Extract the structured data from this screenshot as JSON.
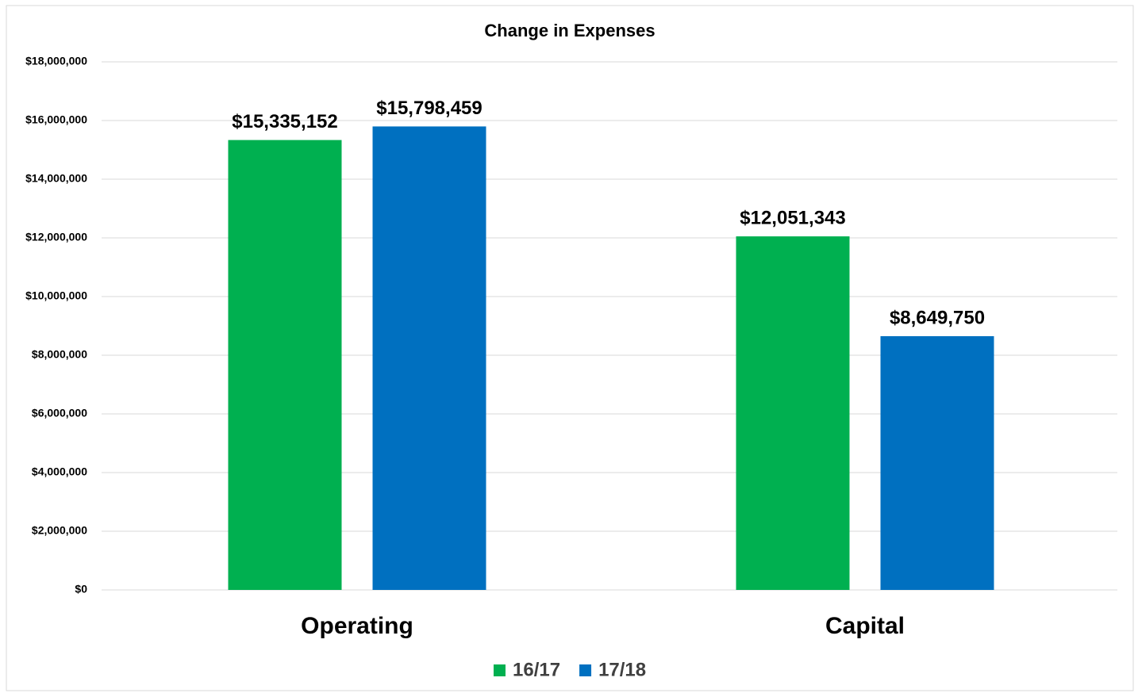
{
  "chart_data": {
    "type": "bar",
    "title": "Change in Expenses",
    "categories": [
      "Operating",
      "Capital"
    ],
    "series": [
      {
        "name": "16/17",
        "color": "#00b050",
        "values": [
          15335152,
          12051343
        ],
        "value_labels": [
          "$15,335,152",
          "$12,051,343"
        ]
      },
      {
        "name": "17/18",
        "color": "#0070c0",
        "values": [
          15798459,
          8649750
        ],
        "value_labels": [
          "$15,798,459",
          "$8,649,750"
        ]
      }
    ],
    "ylim": [
      0,
      18000000
    ],
    "yticks": [
      {
        "value": 0,
        "label": "$0"
      },
      {
        "value": 2000000,
        "label": "$2,000,000"
      },
      {
        "value": 4000000,
        "label": "$4,000,000"
      },
      {
        "value": 6000000,
        "label": "$6,000,000"
      },
      {
        "value": 8000000,
        "label": "$8,000,000"
      },
      {
        "value": 10000000,
        "label": "$10,000,000"
      },
      {
        "value": 12000000,
        "label": "$12,000,000"
      },
      {
        "value": 14000000,
        "label": "$14,000,000"
      },
      {
        "value": 16000000,
        "label": "$16,000,000"
      },
      {
        "value": 18000000,
        "label": "$18,000,000"
      }
    ],
    "grid": true,
    "legend": "bottom"
  }
}
